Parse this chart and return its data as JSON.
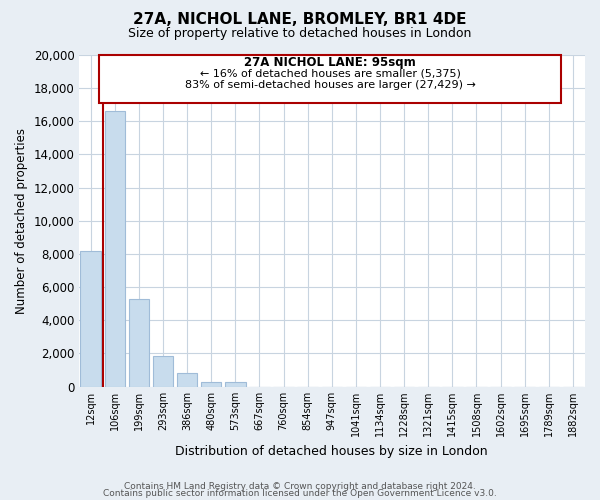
{
  "title": "27A, NICHOL LANE, BROMLEY, BR1 4DE",
  "subtitle": "Size of property relative to detached houses in London",
  "xlabel": "Distribution of detached houses by size in London",
  "ylabel": "Number of detached properties",
  "bar_labels": [
    "12sqm",
    "106sqm",
    "199sqm",
    "293sqm",
    "386sqm",
    "480sqm",
    "573sqm",
    "667sqm",
    "760sqm",
    "854sqm",
    "947sqm",
    "1041sqm",
    "1134sqm",
    "1228sqm",
    "1321sqm",
    "1415sqm",
    "1508sqm",
    "1602sqm",
    "1695sqm",
    "1789sqm",
    "1882sqm"
  ],
  "bar_values": [
    8200,
    16600,
    5300,
    1850,
    800,
    300,
    250,
    0,
    0,
    0,
    0,
    0,
    0,
    0,
    0,
    0,
    0,
    0,
    0,
    0,
    0
  ],
  "bar_color": "#c8dced",
  "bar_edge_color": "#a0bcd8",
  "highlight_color": "#aa0000",
  "ylim": [
    0,
    20000
  ],
  "yticks": [
    0,
    2000,
    4000,
    6000,
    8000,
    10000,
    12000,
    14000,
    16000,
    18000,
    20000
  ],
  "annotation_title": "27A NICHOL LANE: 95sqm",
  "annotation_line1": "← 16% of detached houses are smaller (5,375)",
  "annotation_line2": "83% of semi-detached houses are larger (27,429) →",
  "footer_line1": "Contains HM Land Registry data © Crown copyright and database right 2024.",
  "footer_line2": "Contains public sector information licensed under the Open Government Licence v3.0.",
  "bg_color": "#e8eef4",
  "plot_bg_color": "#ffffff",
  "grid_color": "#c8d4e0"
}
